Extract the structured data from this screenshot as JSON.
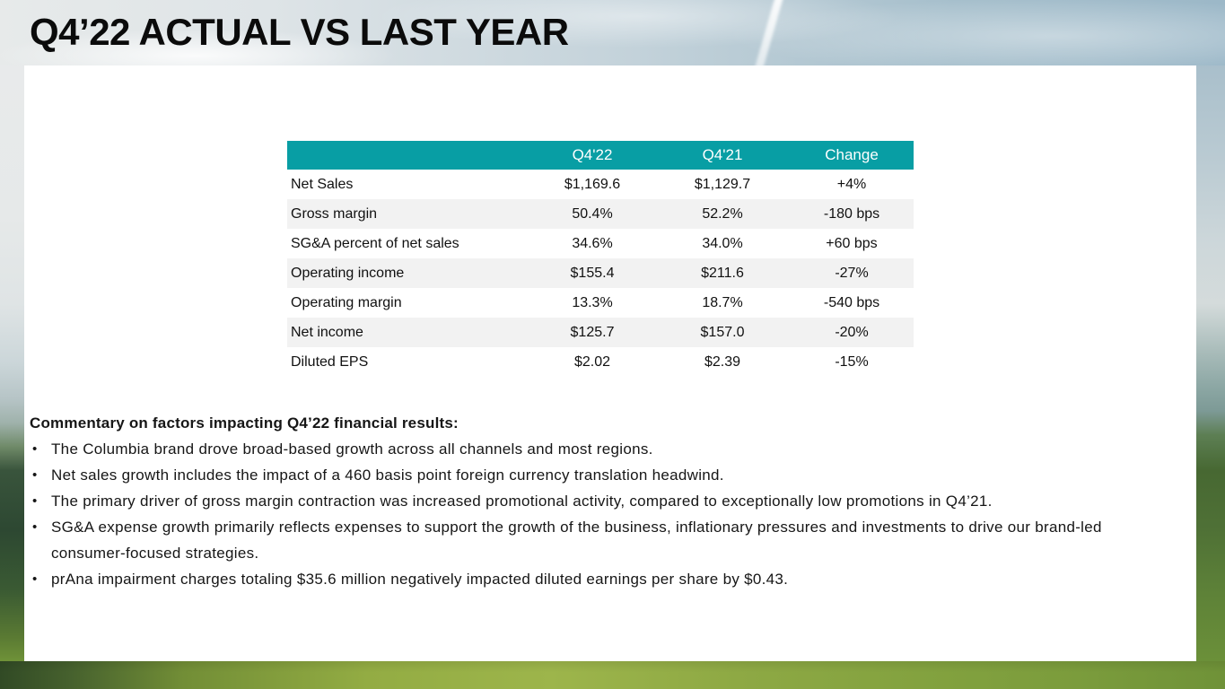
{
  "title": "Q4’22 ACTUAL VS LAST YEAR",
  "table": {
    "header": {
      "metric": "",
      "q422": "Q4'22",
      "q421": "Q4'21",
      "change": "Change"
    },
    "rows": [
      {
        "label": "Net Sales",
        "q422": "$1,169.6",
        "q421": "$1,129.7",
        "change": "+4%"
      },
      {
        "label": "Gross margin",
        "q422": "50.4%",
        "q421": "52.2%",
        "change": "-180 bps"
      },
      {
        "label": "SG&A percent of net sales",
        "q422": "34.6%",
        "q421": "34.0%",
        "change": "+60 bps"
      },
      {
        "label": "Operating income",
        "q422": "$155.4",
        "q421": "$211.6",
        "change": "-27%"
      },
      {
        "label": "Operating margin",
        "q422": "13.3%",
        "q421": "18.7%",
        "change": "-540 bps"
      },
      {
        "label": "Net income",
        "q422": "$125.7",
        "q421": "$157.0",
        "change": "-20%"
      },
      {
        "label": "Diluted EPS",
        "q422": "$2.02",
        "q421": "$2.39",
        "change": "-15%"
      }
    ]
  },
  "commentary": {
    "heading": "Commentary on factors impacting Q4’22 financial results:",
    "bullet_glyph": "•",
    "bullets": [
      "The Columbia brand drove broad-based growth across all channels and most regions.",
      "Net sales growth includes the impact of a 460 basis point foreign currency translation headwind.",
      "The primary driver of gross margin contraction was increased promotional activity, compared to exceptionally low promotions in Q4’21.",
      "SG&A expense growth primarily reflects expenses to support the growth of the business, inflationary pressures and investments to drive our brand-led consumer-focused strategies.",
      "prAna impairment charges totaling $35.6 million negatively impacted diluted earnings per share by $0.43."
    ]
  },
  "colors": {
    "table_header_bg": "#089ea4",
    "table_header_text": "#ffffff",
    "row_alt_bg": "#f2f2f2",
    "title_text": "#0b0b0b"
  }
}
